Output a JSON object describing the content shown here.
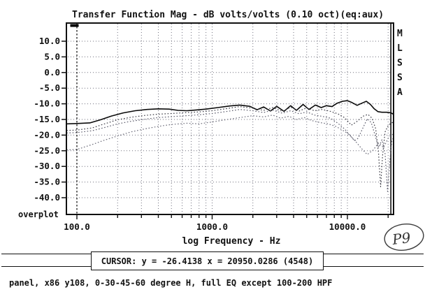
{
  "title": "Transfer Function Mag - dB volts/volts (0.10 oct)(eq:aux)",
  "watermark": "MLSSA",
  "overplot_label": "overplot",
  "stamp": "P9",
  "cursor": {
    "text": "CURSOR: y = -26.4138 x = 20950.0286 (4548)",
    "y_db": -26.4138,
    "x_hz": 20950.0286,
    "bin": "4548",
    "left_marker_hz": 100
  },
  "caption": "panel, x86 y108, 0-30-45-60 degree H, full EQ except 100-200 HPF",
  "xaxis": {
    "label": "log Frequency - Hz",
    "tick_labels": [
      "100.0",
      "1000.0",
      "10000.0"
    ],
    "tick_values": [
      100,
      1000,
      10000
    ]
  },
  "yaxis": {
    "tick_labels": [
      "10.0",
      "5.0",
      "0.0",
      "-5.0",
      "-10.0",
      "-15.0",
      "-20.0",
      "-25.0",
      "-30.0",
      "-35.0",
      "-40.0"
    ],
    "tick_values": [
      10,
      5,
      0,
      -5,
      -10,
      -15,
      -20,
      -25,
      -30,
      -35,
      -40
    ]
  },
  "colors": {
    "ink": "#111111",
    "grid": "#70707e",
    "curve0": "#0a0a0a",
    "curve30": "#3a3a44",
    "curve45": "#5c5c6c",
    "curve60": "#6a6a78"
  },
  "chart_data": {
    "type": "line",
    "title": "Transfer Function Mag - dB volts/volts (0.10 oct)(eq:aux)",
    "xlabel": "log Frequency - Hz",
    "ylabel": "dB volts/volts",
    "x_scale": "log",
    "xlim": [
      84,
      22300
    ],
    "ylim": [
      -45.5,
      15.8
    ],
    "grid": true,
    "gridline_step_db": 5,
    "series": [
      {
        "name": "0 degree",
        "style": "solid",
        "color": "#0a0a0a",
        "points": [
          [
            84,
            -16.4
          ],
          [
            100,
            -16.3
          ],
          [
            125,
            -16.1
          ],
          [
            150,
            -15.1
          ],
          [
            180,
            -13.9
          ],
          [
            220,
            -12.9
          ],
          [
            270,
            -12.2
          ],
          [
            330,
            -11.8
          ],
          [
            400,
            -11.6
          ],
          [
            480,
            -11.7
          ],
          [
            560,
            -12.1
          ],
          [
            650,
            -12.2
          ],
          [
            750,
            -12.0
          ],
          [
            900,
            -11.7
          ],
          [
            1100,
            -11.2
          ],
          [
            1350,
            -10.7
          ],
          [
            1600,
            -10.4
          ],
          [
            1900,
            -10.8
          ],
          [
            2150,
            -11.9
          ],
          [
            2400,
            -11.0
          ],
          [
            2700,
            -12.3
          ],
          [
            3000,
            -10.8
          ],
          [
            3400,
            -12.4
          ],
          [
            3800,
            -10.6
          ],
          [
            4200,
            -12.1
          ],
          [
            4700,
            -10.2
          ],
          [
            5200,
            -11.8
          ],
          [
            5800,
            -10.4
          ],
          [
            6400,
            -11.2
          ],
          [
            7000,
            -10.6
          ],
          [
            7700,
            -10.9
          ],
          [
            8400,
            -9.8
          ],
          [
            9200,
            -9.2
          ],
          [
            10000,
            -9.0
          ],
          [
            10800,
            -9.6
          ],
          [
            11800,
            -10.5
          ],
          [
            12800,
            -9.8
          ],
          [
            13800,
            -9.2
          ],
          [
            14800,
            -10.2
          ],
          [
            15800,
            -11.6
          ],
          [
            16800,
            -12.5
          ],
          [
            18000,
            -12.7
          ],
          [
            19500,
            -12.7
          ],
          [
            21000,
            -12.9
          ],
          [
            22000,
            -13.4
          ]
        ]
      },
      {
        "name": "30 degree",
        "style": "dotted",
        "color": "#3a3a44",
        "points": [
          [
            84,
            -18.5
          ],
          [
            100,
            -18.4
          ],
          [
            130,
            -17.7
          ],
          [
            160,
            -16.4
          ],
          [
            200,
            -15.1
          ],
          [
            250,
            -14.3
          ],
          [
            320,
            -13.7
          ],
          [
            400,
            -13.3
          ],
          [
            500,
            -13.1
          ],
          [
            650,
            -12.8
          ],
          [
            800,
            -12.6
          ],
          [
            1000,
            -12.2
          ],
          [
            1300,
            -11.5
          ],
          [
            1600,
            -10.9
          ],
          [
            2000,
            -11.4
          ],
          [
            2400,
            -12.1
          ],
          [
            2800,
            -11.2
          ],
          [
            3300,
            -12.4
          ],
          [
            3800,
            -11.1
          ],
          [
            4400,
            -12.3
          ],
          [
            5000,
            -11.3
          ],
          [
            5700,
            -12.2
          ],
          [
            6500,
            -11.8
          ],
          [
            7500,
            -12.4
          ],
          [
            8500,
            -13.2
          ],
          [
            9500,
            -14.4
          ],
          [
            10700,
            -16.8
          ],
          [
            11800,
            -15.6
          ],
          [
            13000,
            -14.0
          ],
          [
            14200,
            -13.4
          ],
          [
            15200,
            -14.6
          ],
          [
            16200,
            -18.0
          ],
          [
            17000,
            -26.0
          ],
          [
            17600,
            -36.5
          ],
          [
            18200,
            -26.5
          ],
          [
            19000,
            -19.0
          ],
          [
            20000,
            -17.0
          ],
          [
            21000,
            -16.2
          ],
          [
            22000,
            -15.8
          ]
        ]
      },
      {
        "name": "45 degree",
        "style": "dotted",
        "color": "#5c5c6c",
        "points": [
          [
            84,
            -19.3
          ],
          [
            100,
            -19.2
          ],
          [
            130,
            -18.6
          ],
          [
            160,
            -17.6
          ],
          [
            200,
            -16.4
          ],
          [
            250,
            -15.6
          ],
          [
            320,
            -14.9
          ],
          [
            400,
            -14.4
          ],
          [
            500,
            -14.1
          ],
          [
            650,
            -13.8
          ],
          [
            800,
            -13.5
          ],
          [
            1000,
            -13.1
          ],
          [
            1300,
            -12.4
          ],
          [
            1600,
            -11.8
          ],
          [
            2000,
            -12.2
          ],
          [
            2400,
            -12.8
          ],
          [
            2800,
            -12.0
          ],
          [
            3300,
            -13.0
          ],
          [
            3800,
            -12.2
          ],
          [
            4400,
            -13.2
          ],
          [
            5000,
            -12.6
          ],
          [
            5700,
            -13.6
          ],
          [
            6500,
            -14.0
          ],
          [
            7500,
            -14.6
          ],
          [
            8500,
            -16.2
          ],
          [
            9500,
            -18.0
          ],
          [
            10500,
            -20.2
          ],
          [
            11300,
            -21.8
          ],
          [
            12000,
            -21.0
          ],
          [
            13000,
            -17.8
          ],
          [
            14000,
            -14.8
          ],
          [
            15000,
            -16.0
          ],
          [
            16000,
            -20.0
          ],
          [
            17000,
            -24.0
          ],
          [
            18000,
            -21.5
          ],
          [
            19000,
            -26.0
          ],
          [
            19800,
            -38.0
          ],
          [
            20600,
            -28.0
          ],
          [
            21300,
            -22.0
          ],
          [
            22000,
            -20.5
          ]
        ]
      },
      {
        "name": "60 degree",
        "style": "dotted",
        "color": "#6a6a78",
        "points": [
          [
            84,
            -24.7
          ],
          [
            100,
            -24.6
          ],
          [
            130,
            -23.0
          ],
          [
            160,
            -21.6
          ],
          [
            200,
            -20.3
          ],
          [
            250,
            -19.0
          ],
          [
            320,
            -18.0
          ],
          [
            400,
            -17.2
          ],
          [
            500,
            -16.6
          ],
          [
            650,
            -16.2
          ],
          [
            800,
            -16.4
          ],
          [
            1000,
            -15.8
          ],
          [
            1300,
            -15.0
          ],
          [
            1600,
            -14.4
          ],
          [
            2000,
            -13.8
          ],
          [
            2400,
            -14.2
          ],
          [
            2800,
            -13.6
          ],
          [
            3200,
            -14.6
          ],
          [
            3700,
            -14.0
          ],
          [
            4200,
            -15.0
          ],
          [
            4800,
            -14.4
          ],
          [
            5500,
            -15.4
          ],
          [
            6300,
            -16.0
          ],
          [
            7200,
            -16.4
          ],
          [
            8200,
            -17.2
          ],
          [
            9200,
            -18.4
          ],
          [
            10300,
            -19.8
          ],
          [
            11500,
            -22.0
          ],
          [
            12800,
            -24.4
          ],
          [
            14000,
            -26.2
          ],
          [
            15500,
            -24.8
          ],
          [
            17000,
            -22.5
          ],
          [
            18500,
            -24.0
          ],
          [
            20000,
            -21.0
          ],
          [
            22000,
            -19.5
          ]
        ]
      }
    ]
  }
}
